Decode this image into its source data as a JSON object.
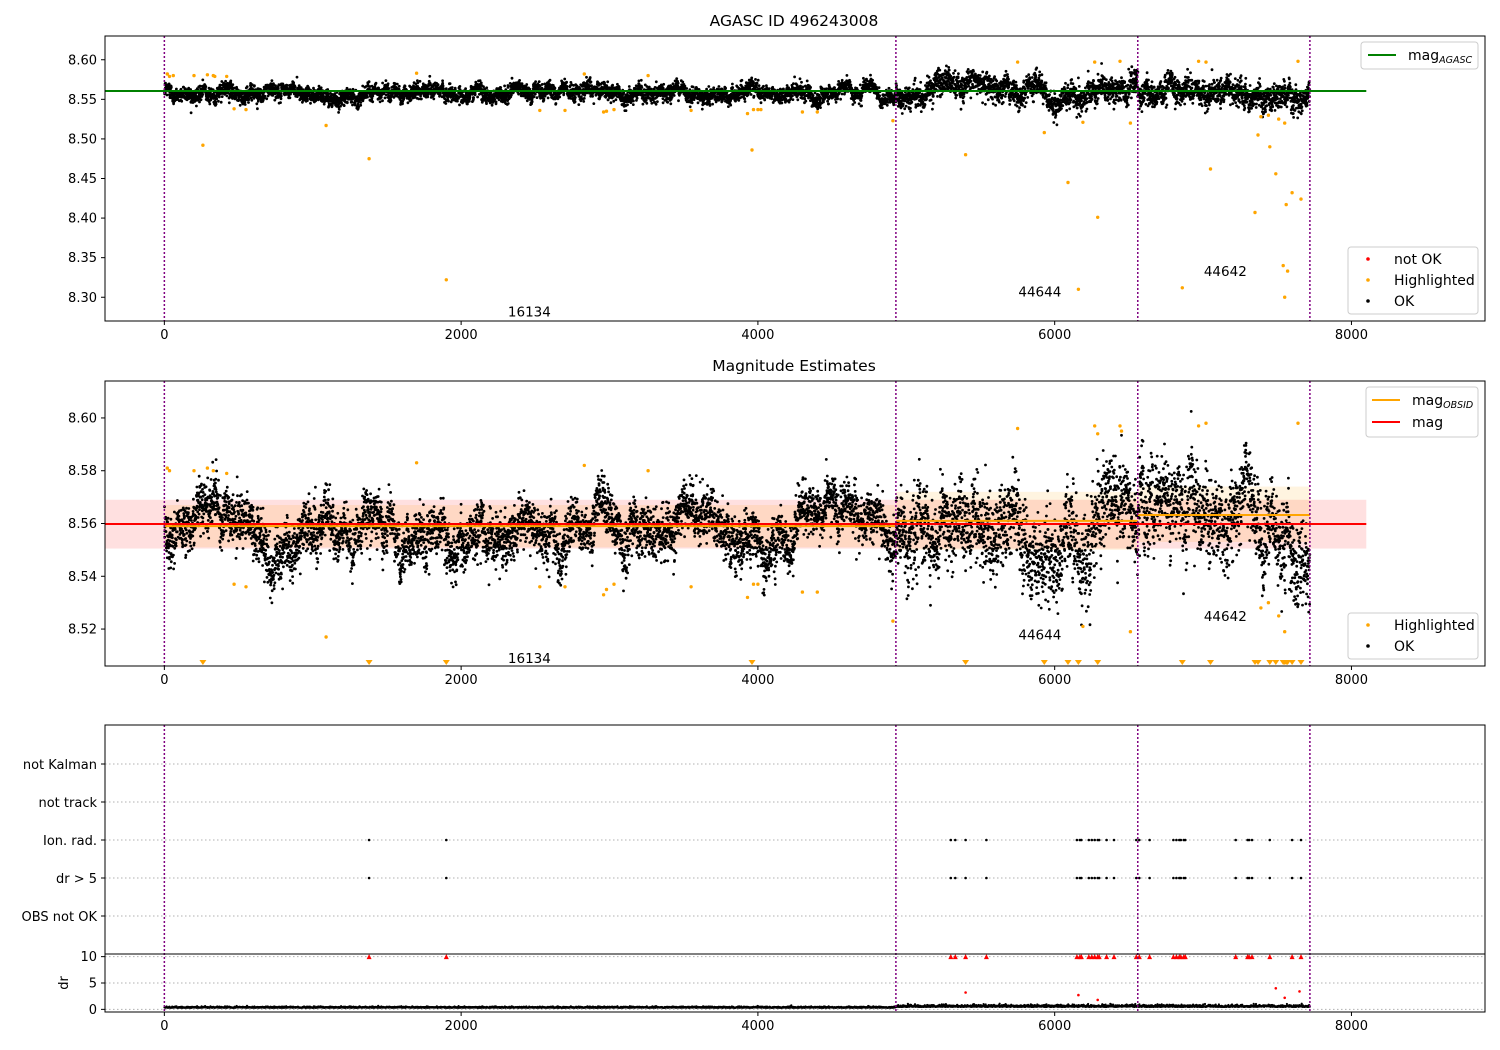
{
  "chart_data": [
    {
      "type": "scatter",
      "title": "AGASC ID 496243008",
      "xlim": [
        -400,
        8900
      ],
      "ylim": [
        8.27,
        8.63
      ],
      "xticks": [
        0,
        2000,
        4000,
        6000,
        8000
      ],
      "yticks": [
        8.3,
        8.35,
        8.4,
        8.45,
        8.5,
        8.55,
        8.6
      ],
      "obsid_boundaries": [
        0,
        4930,
        6560,
        7720
      ],
      "obsid_labels": [
        {
          "text": "16134",
          "x": 2460,
          "y": 8.282
        },
        {
          "text": "44644",
          "x": 5900,
          "y": 8.307
        },
        {
          "text": "44642",
          "x": 7150,
          "y": 8.333
        }
      ],
      "reference_lines": [
        {
          "name": "mag_AGASC",
          "label": "mag",
          "sub": "AGASC",
          "y": 8.5605,
          "x_range": [
            -400,
            8100
          ],
          "color": "#008000"
        }
      ],
      "legend_top": [
        {
          "label": "mag",
          "sub": "AGASC",
          "kind": "line",
          "color": "#008000"
        }
      ],
      "legend_bottom": [
        {
          "label": "not OK",
          "kind": "dot",
          "color": "#ff0000"
        },
        {
          "label": "Highlighted",
          "kind": "dot",
          "color": "#ffa500"
        },
        {
          "label": "OK",
          "kind": "dot",
          "color": "#000000"
        }
      ],
      "series_ok": {
        "color": "#000000",
        "segments": [
          {
            "x_range": [
              0,
              4930
            ],
            "mean": 8.559,
            "sigma": 0.0058
          },
          {
            "x_range": [
              4930,
              6560
            ],
            "mean": 8.5605,
            "sigma": 0.0095
          },
          {
            "x_range": [
              6560,
              7720
            ],
            "mean": 8.5625,
            "sigma": 0.0095
          }
        ]
      },
      "series_highlighted": {
        "color": "#ffa500",
        "points": [
          [
            20,
            8.582
          ],
          [
            35,
            8.579
          ],
          [
            60,
            8.58
          ],
          [
            200,
            8.58
          ],
          [
            260,
            8.492
          ],
          [
            290,
            8.581
          ],
          [
            330,
            8.58
          ],
          [
            340,
            8.579
          ],
          [
            420,
            8.579
          ],
          [
            470,
            8.538
          ],
          [
            550,
            8.537
          ],
          [
            1090,
            8.517
          ],
          [
            1380,
            8.475
          ],
          [
            1700,
            8.583
          ],
          [
            1900,
            8.322
          ],
          [
            2530,
            8.536
          ],
          [
            2700,
            8.536
          ],
          [
            2830,
            8.582
          ],
          [
            2960,
            8.534
          ],
          [
            2980,
            8.535
          ],
          [
            3030,
            8.537
          ],
          [
            3260,
            8.58
          ],
          [
            3550,
            8.536
          ],
          [
            3930,
            8.532
          ],
          [
            3960,
            8.486
          ],
          [
            3970,
            8.537
          ],
          [
            4000,
            8.537
          ],
          [
            4020,
            8.537
          ],
          [
            4300,
            8.534
          ],
          [
            4400,
            8.534
          ],
          [
            4910,
            8.523
          ],
          [
            5400,
            8.48
          ],
          [
            5750,
            8.597
          ],
          [
            5930,
            8.508
          ],
          [
            6090,
            8.445
          ],
          [
            6160,
            8.31
          ],
          [
            6190,
            8.521
          ],
          [
            6270,
            8.597
          ],
          [
            6290,
            8.401
          ],
          [
            6440,
            8.598
          ],
          [
            6510,
            8.52
          ],
          [
            6860,
            8.312
          ],
          [
            6970,
            8.598
          ],
          [
            7020,
            8.597
          ],
          [
            7050,
            8.462
          ],
          [
            7350,
            8.407
          ],
          [
            7370,
            8.505
          ],
          [
            7390,
            8.528
          ],
          [
            7440,
            8.53
          ],
          [
            7450,
            8.49
          ],
          [
            7490,
            8.456
          ],
          [
            7510,
            8.525
          ],
          [
            7540,
            8.34
          ],
          [
            7550,
            8.3
          ],
          [
            7550,
            8.52
          ],
          [
            7560,
            8.417
          ],
          [
            7570,
            8.333
          ],
          [
            7600,
            8.432
          ],
          [
            7640,
            8.598
          ],
          [
            7660,
            8.424
          ]
        ]
      },
      "series_not_ok": {
        "color": "#ff0000",
        "points": []
      }
    },
    {
      "type": "scatter",
      "title": "Magnitude Estimates",
      "xlim": [
        -400,
        8900
      ],
      "ylim": [
        8.506,
        8.614
      ],
      "xticks": [
        0,
        2000,
        4000,
        6000,
        8000
      ],
      "yticks": [
        8.52,
        8.54,
        8.56,
        8.58,
        8.6
      ],
      "obsid_boundaries": [
        0,
        4930,
        6560,
        7720
      ],
      "obsid_labels": [
        {
          "text": "16134",
          "x": 2460,
          "y": 8.509
        },
        {
          "text": "44644",
          "x": 5900,
          "y": 8.518
        },
        {
          "text": "44642",
          "x": 7150,
          "y": 8.525
        }
      ],
      "mag_band": {
        "y_range": [
          8.5505,
          8.569
        ],
        "x_range": [
          -400,
          8100
        ],
        "color": "#ff0000"
      },
      "mag": {
        "label": "mag",
        "y": 8.5598,
        "x_range": [
          -400,
          8100
        ],
        "color": "#ff0000"
      },
      "mag_obsid": [
        {
          "x_range": [
            0,
            4930
          ],
          "y": 8.559
        },
        {
          "x_range": [
            4930,
            6560
          ],
          "y": 8.561
        },
        {
          "x_range": [
            6560,
            7720
          ],
          "y": 8.5632
        }
      ],
      "mag_obsid_band": [
        {
          "x_range": [
            0,
            4930
          ],
          "y_range": [
            8.551,
            8.567
          ]
        },
        {
          "x_range": [
            4930,
            6560
          ],
          "y_range": [
            8.55,
            8.572
          ]
        },
        {
          "x_range": [
            6560,
            7720
          ],
          "y_range": [
            8.553,
            8.574
          ]
        }
      ],
      "legend_top": [
        {
          "label": "mag",
          "sub": "OBSID",
          "kind": "line",
          "color": "#ffa500"
        },
        {
          "label": "mag",
          "sub": "",
          "kind": "line",
          "color": "#ff0000"
        }
      ],
      "legend_bottom": [
        {
          "label": "Highlighted",
          "kind": "dot",
          "color": "#ffa500"
        },
        {
          "label": "OK",
          "kind": "dot",
          "color": "#000000"
        }
      ],
      "series_ok": {
        "color": "#000000",
        "segments": [
          {
            "x_range": [
              0,
              4930
            ],
            "mean": 8.559,
            "sigma": 0.0058
          },
          {
            "x_range": [
              4930,
              6560
            ],
            "mean": 8.5605,
            "sigma": 0.0095
          },
          {
            "x_range": [
              6560,
              7720
            ],
            "mean": 8.5625,
            "sigma": 0.0095
          }
        ]
      },
      "series_highlighted": {
        "color": "#ffa500",
        "points": [
          [
            20,
            8.581
          ],
          [
            35,
            8.58
          ],
          [
            200,
            8.58
          ],
          [
            290,
            8.581
          ],
          [
            330,
            8.58
          ],
          [
            420,
            8.579
          ],
          [
            470,
            8.537
          ],
          [
            550,
            8.536
          ],
          [
            1090,
            8.517
          ],
          [
            1700,
            8.583
          ],
          [
            2530,
            8.536
          ],
          [
            2700,
            8.536
          ],
          [
            2830,
            8.582
          ],
          [
            2960,
            8.533
          ],
          [
            2980,
            8.535
          ],
          [
            3030,
            8.537
          ],
          [
            3260,
            8.58
          ],
          [
            3550,
            8.536
          ],
          [
            3930,
            8.532
          ],
          [
            3970,
            8.537
          ],
          [
            4000,
            8.537
          ],
          [
            4300,
            8.534
          ],
          [
            4400,
            8.534
          ],
          [
            4910,
            8.523
          ],
          [
            5750,
            8.596
          ],
          [
            6190,
            8.521
          ],
          [
            6270,
            8.597
          ],
          [
            6290,
            8.594
          ],
          [
            6440,
            8.597
          ],
          [
            6450,
            8.595
          ],
          [
            6510,
            8.519
          ],
          [
            6970,
            8.597
          ],
          [
            7020,
            8.598
          ],
          [
            7390,
            8.528
          ],
          [
            7440,
            8.53
          ],
          [
            7510,
            8.525
          ],
          [
            7550,
            8.519
          ],
          [
            7640,
            8.598
          ]
        ]
      },
      "offscale_markers": {
        "color": "#ffa500",
        "x": [
          260,
          1380,
          1900,
          3960,
          5400,
          5930,
          6090,
          6160,
          6290,
          6860,
          7050,
          7350,
          7370,
          7450,
          7490,
          7540,
          7550,
          7560,
          7570,
          7600,
          7660
        ]
      }
    },
    {
      "type": "scatter",
      "title": "",
      "xlim": [
        -400,
        8900
      ],
      "xticks": [
        0,
        2000,
        4000,
        6000,
        8000
      ],
      "obsid_boundaries": [
        0,
        4930,
        6560,
        7720
      ],
      "flag_rows": [
        "not Kalman",
        "not track",
        "Ion. rad.",
        "dr > 5",
        "OBS not OK"
      ],
      "flag_points": {
        "Ion. rad.": [
          1380,
          1900,
          5300,
          5330,
          5400,
          5540,
          6150,
          6170,
          6180,
          6230,
          6250,
          6270,
          6290,
          6300,
          6350,
          6400,
          6550,
          6570,
          6640,
          6800,
          6820,
          6840,
          6850,
          6870,
          6880,
          7220,
          7300,
          7310,
          7330,
          7450,
          7600,
          7660
        ],
        "dr > 5": [
          1380,
          1900,
          5300,
          5330,
          5400,
          5540,
          6150,
          6170,
          6180,
          6230,
          6250,
          6270,
          6290,
          6300,
          6350,
          6400,
          6550,
          6570,
          6640,
          6800,
          6820,
          6840,
          6850,
          6870,
          6880,
          7220,
          7300,
          7310,
          7330,
          7450,
          7600,
          7660
        ],
        "not Kalman": [],
        "not track": [],
        "OBS not OK": []
      },
      "dr": {
        "ylabel": "dr",
        "ylim": [
          -0.5,
          10.5
        ],
        "yticks": [
          0,
          5,
          10
        ],
        "baseline": [
          {
            "x_range": [
              0,
              4930
            ],
            "mean": 0.35,
            "sigma": 0.12
          },
          {
            "x_range": [
              4930,
              7720
            ],
            "mean": 0.55,
            "sigma": 0.22
          }
        ],
        "capped_points": [
          1380,
          1900,
          5300,
          5330,
          5400,
          5540,
          6150,
          6170,
          6180,
          6230,
          6250,
          6270,
          6290,
          6300,
          6350,
          6400,
          6550,
          6570,
          6640,
          6800,
          6820,
          6840,
          6850,
          6870,
          6880,
          7220,
          7300,
          7310,
          7330,
          7450,
          7600,
          7660
        ],
        "extra_points": [
          [
            5400,
            3.2
          ],
          [
            6160,
            2.7
          ],
          [
            6290,
            1.8
          ],
          [
            7490,
            4.0
          ],
          [
            7550,
            2.2
          ],
          [
            7650,
            3.4
          ]
        ]
      }
    }
  ]
}
